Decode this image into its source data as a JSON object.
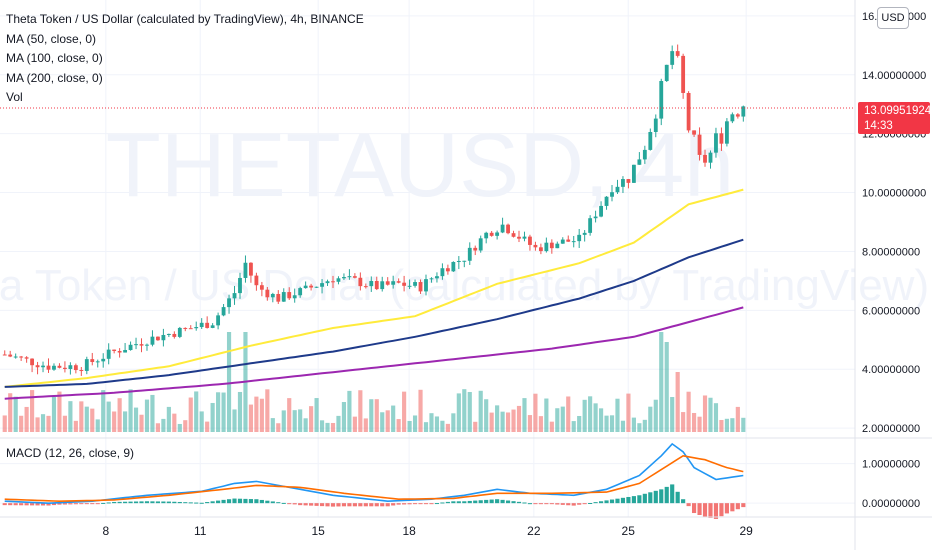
{
  "header": {
    "title": "Theta Token / US Dollar (calculated by TradingView), 4h, BINANCE",
    "indicators": [
      "MA (50, close, 0)",
      "MA (100, close, 0)",
      "MA (200, close, 0)",
      "Vol"
    ],
    "currency_button": "USD"
  },
  "watermark": {
    "symbol": "THETAUSD, 4h",
    "description": "Theta Token / US Dollar (calculated by TradingView)"
  },
  "last_price": {
    "value": "13.09951924",
    "countdown": "14:33"
  },
  "macd": {
    "label": "MACD (12, 26, close, 9)"
  },
  "colors": {
    "up": "#26a69a",
    "down": "#ef5350",
    "ma50": "#ffeb3b",
    "ma100": "#1e3a8a",
    "ma200": "#9c27b0",
    "macd_line": "#2196f3",
    "signal_line": "#ff6d00",
    "price_tag": "#f23645"
  },
  "chart_data": [
    {
      "type": "candlestick",
      "title": "Theta Token / US Dollar (calculated by TradingView), 4h, BINANCE",
      "x_ticks": [
        "8",
        "11",
        "15",
        "18",
        "22",
        "25",
        "29"
      ],
      "y_ticks": [
        "2.00000000",
        "4.00000000",
        "6.00000000",
        "8.00000000",
        "10.00000000",
        "12.00000000",
        "14.00000000",
        "16.00000000"
      ],
      "ylim": [
        1.8,
        16.2
      ],
      "grid": true,
      "candle_count": 136,
      "close_path": [
        [
          0,
          4.5
        ],
        [
          8,
          4.1
        ],
        [
          14,
          4.1
        ],
        [
          20,
          4.6
        ],
        [
          26,
          5.0
        ],
        [
          32,
          5.3
        ],
        [
          38,
          5.6
        ],
        [
          42,
          6.6
        ],
        [
          44,
          7.6
        ],
        [
          46,
          6.8
        ],
        [
          50,
          6.4
        ],
        [
          55,
          6.7
        ],
        [
          60,
          7.1
        ],
        [
          64,
          7.0
        ],
        [
          68,
          6.8
        ],
        [
          72,
          6.9
        ],
        [
          76,
          6.8
        ],
        [
          80,
          7.4
        ],
        [
          84,
          7.8
        ],
        [
          88,
          8.6
        ],
        [
          91,
          8.9
        ],
        [
          94,
          8.5
        ],
        [
          97,
          8.1
        ],
        [
          101,
          8.3
        ],
        [
          105,
          8.4
        ],
        [
          108,
          9.3
        ],
        [
          111,
          10.2
        ],
        [
          114,
          10.5
        ],
        [
          117,
          11.6
        ],
        [
          119,
          12.8
        ],
        [
          121,
          14.2
        ],
        [
          122,
          14.8
        ],
        [
          123,
          14.3
        ],
        [
          125,
          12.2
        ],
        [
          126,
          11.6
        ],
        [
          127,
          11.0
        ],
        [
          129,
          11.3
        ],
        [
          131,
          12.1
        ],
        [
          133,
          12.8
        ],
        [
          135,
          13.1
        ]
      ],
      "moving_averages": [
        {
          "name": "MA (50, close, 0)",
          "color": "#ffeb3b",
          "values": [
            [
              0,
              3.4
            ],
            [
              15,
              3.7
            ],
            [
              30,
              4.1
            ],
            [
              45,
              4.8
            ],
            [
              60,
              5.4
            ],
            [
              75,
              5.8
            ],
            [
              90,
              6.9
            ],
            [
              105,
              7.6
            ],
            [
              115,
              8.3
            ],
            [
              125,
              9.6
            ],
            [
              135,
              10.1
            ]
          ]
        },
        {
          "name": "MA (100, close, 0)",
          "color": "#1e3a8a",
          "values": [
            [
              0,
              3.4
            ],
            [
              15,
              3.5
            ],
            [
              30,
              3.8
            ],
            [
              45,
              4.2
            ],
            [
              60,
              4.6
            ],
            [
              75,
              5.1
            ],
            [
              90,
              5.7
            ],
            [
              105,
              6.4
            ],
            [
              115,
              7.0
            ],
            [
              125,
              7.8
            ],
            [
              135,
              8.4
            ]
          ]
        },
        {
          "name": "MA (200, close, 0)",
          "color": "#9c27b0",
          "values": [
            [
              0,
              3.0
            ],
            [
              20,
              3.2
            ],
            [
              40,
              3.5
            ],
            [
              60,
              3.9
            ],
            [
              80,
              4.3
            ],
            [
              100,
              4.7
            ],
            [
              115,
              5.1
            ],
            [
              125,
              5.6
            ],
            [
              135,
              6.1
            ]
          ]
        }
      ],
      "volume_peaks": [
        [
          41,
          1.0
        ],
        [
          44,
          1.0
        ],
        [
          120,
          1.0
        ],
        [
          121,
          0.9
        ],
        [
          123,
          0.6
        ]
      ]
    },
    {
      "type": "line",
      "title": "MACD (12, 26, close, 9)",
      "y_ticks": [
        "0.00000000",
        "1.00000000"
      ],
      "ylim": [
        -0.3,
        1.6
      ],
      "series": [
        {
          "name": "MACD",
          "color": "#2196f3",
          "values": [
            [
              0,
              0.05
            ],
            [
              8,
              0.0
            ],
            [
              16,
              0.05
            ],
            [
              26,
              0.2
            ],
            [
              36,
              0.3
            ],
            [
              42,
              0.5
            ],
            [
              46,
              0.55
            ],
            [
              52,
              0.4
            ],
            [
              60,
              0.2
            ],
            [
              70,
              0.05
            ],
            [
              78,
              0.1
            ],
            [
              84,
              0.2
            ],
            [
              90,
              0.35
            ],
            [
              96,
              0.25
            ],
            [
              104,
              0.2
            ],
            [
              110,
              0.35
            ],
            [
              116,
              0.7
            ],
            [
              120,
              1.2
            ],
            [
              122,
              1.5
            ],
            [
              124,
              1.3
            ],
            [
              126,
              0.9
            ],
            [
              130,
              0.6
            ],
            [
              135,
              0.7
            ]
          ]
        },
        {
          "name": "Signal",
          "color": "#ff6d00",
          "values": [
            [
              0,
              0.1
            ],
            [
              10,
              0.05
            ],
            [
              20,
              0.08
            ],
            [
              30,
              0.2
            ],
            [
              40,
              0.35
            ],
            [
              46,
              0.45
            ],
            [
              54,
              0.4
            ],
            [
              62,
              0.25
            ],
            [
              72,
              0.1
            ],
            [
              82,
              0.12
            ],
            [
              90,
              0.25
            ],
            [
              100,
              0.25
            ],
            [
              110,
              0.28
            ],
            [
              116,
              0.5
            ],
            [
              120,
              0.85
            ],
            [
              124,
              1.2
            ],
            [
              128,
              1.1
            ],
            [
              132,
              0.9
            ],
            [
              135,
              0.8
            ]
          ]
        }
      ]
    }
  ]
}
